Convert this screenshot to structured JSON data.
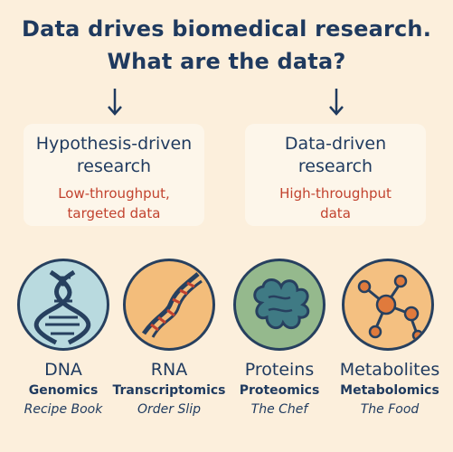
{
  "title": {
    "line1": "Data drives biomedical research.",
    "line2": "What are the data?"
  },
  "branches": [
    {
      "heading_line1": "Hypothesis-driven",
      "heading_line2": "research",
      "sub_line1": "Low-throughput,",
      "sub_line2": "targeted data"
    },
    {
      "heading_line1": "Data-driven",
      "heading_line2": "research",
      "sub_line1": "High-throughput",
      "sub_line2": "data"
    }
  ],
  "molecules": [
    {
      "name": "DNA",
      "omics": "Genomics",
      "metaphor": "Recipe Book",
      "color": "#b9dadf",
      "icon": "dna-helix-icon"
    },
    {
      "name": "RNA",
      "omics": "Transcriptomics",
      "metaphor": "Order Slip",
      "color": "#f3bd7b",
      "icon": "rna-strand-icon"
    },
    {
      "name": "Proteins",
      "omics": "Proteomics",
      "metaphor": "The Chef",
      "color": "#95b98d",
      "icon": "protein-fold-icon"
    },
    {
      "name": "Metabolites",
      "omics": "Metabolomics",
      "metaphor": "The Food",
      "color": "#f4c081",
      "icon": "metabolite-network-icon"
    }
  ],
  "colors": {
    "background": "#fcefdc",
    "heading": "#1f3a5f",
    "subtext": "#c2432f"
  }
}
